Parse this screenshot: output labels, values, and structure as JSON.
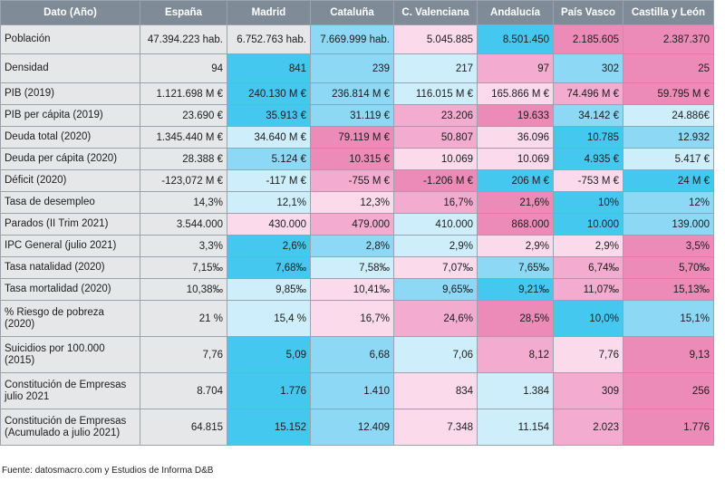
{
  "colors": {
    "header_bg": "#7f8c97",
    "label_bg": "#e6e7e8",
    "neutral": "#e6e7e8",
    "blue_strong": "#45c8f0",
    "blue_mid": "#8dd8f4",
    "blue_light": "#cdeefa",
    "pink_light": "#fadaeb",
    "pink_mid": "#f3acd0",
    "pink_strong": "#ec8ab8"
  },
  "table": {
    "headers": [
      "Dato (Año)",
      "España",
      "Madrid",
      "Cataluña",
      "C. Valenciana",
      "Andalucía",
      "País Vasco",
      "Castilla y León"
    ],
    "rows": [
      {
        "label": "Población",
        "values": [
          "47.394.223 hab.",
          "6.752.763 hab.",
          "7.669.999 hab.",
          "5.045.885",
          "8.501.450",
          "2.185.605",
          "2.387.370"
        ],
        "shades": [
          "neutral",
          "neutral",
          "blue_mid",
          "pink_light",
          "blue_strong",
          "pink_strong",
          "pink_strong"
        ]
      },
      {
        "label": "Densidad",
        "values": [
          "94",
          "841",
          "239",
          "217",
          "97",
          "302",
          "25"
        ],
        "shades": [
          "neutral",
          "blue_strong",
          "blue_mid",
          "blue_light",
          "pink_mid",
          "blue_mid",
          "pink_strong"
        ]
      },
      {
        "label": "PIB (2019)",
        "values": [
          "1.121.698 M €",
          "240.130 M €",
          "236.814 M €",
          "116.015 M €",
          "165.866 M €",
          "74.496 M €",
          "59.795 M €"
        ],
        "shades": [
          "neutral",
          "blue_strong",
          "blue_mid",
          "blue_light",
          "pink_light",
          "pink_mid",
          "pink_strong"
        ]
      },
      {
        "label": "PIB per cápita (2019)",
        "values": [
          "23.690 €",
          "35.913 €",
          "31.119 €",
          "23.206",
          "19.633",
          "34.142 €",
          "24.886€"
        ],
        "shades": [
          "neutral",
          "blue_strong",
          "blue_mid",
          "pink_mid",
          "pink_strong",
          "blue_mid",
          "blue_light"
        ]
      },
      {
        "label": "Deuda total (2020)",
        "values": [
          "1.345.440 M €",
          "34.640 M €",
          "79.119 M €",
          "50.807",
          "36.096",
          "10.785",
          "12.932"
        ],
        "shades": [
          "neutral",
          "blue_light",
          "pink_strong",
          "pink_mid",
          "pink_light",
          "blue_strong",
          "blue_mid"
        ]
      },
      {
        "label": "Deuda per cápita (2020)",
        "values": [
          "28.388 €",
          "5.124 €",
          "10.315 €",
          "10.069",
          "10.069",
          "4.935 €",
          "5.417 €"
        ],
        "shades": [
          "neutral",
          "blue_mid",
          "pink_strong",
          "pink_light",
          "pink_light",
          "blue_strong",
          "blue_light"
        ]
      },
      {
        "label": "Déficit (2020)",
        "values": [
          "-123,072 M €",
          "-117 M €",
          "-755 M €",
          "-1.206 M €",
          "206 M €",
          "-753 M €",
          "24 M €"
        ],
        "shades": [
          "neutral",
          "blue_light",
          "pink_mid",
          "pink_strong",
          "blue_strong",
          "pink_light",
          "blue_strong"
        ]
      },
      {
        "label": "Tasa de desempleo",
        "values": [
          "14,3%",
          "12,1%",
          "12,3%",
          "16,7%",
          "21,6%",
          "10%",
          "12%"
        ],
        "shades": [
          "neutral",
          "blue_light",
          "pink_light",
          "pink_mid",
          "pink_strong",
          "blue_strong",
          "blue_mid"
        ]
      },
      {
        "label": "Parados (II Trim 2021)",
        "values": [
          "3.544.000",
          "430.000",
          "479.000",
          "410.000",
          "868.000",
          "10.000",
          "139.000"
        ],
        "shades": [
          "neutral",
          "pink_light",
          "pink_mid",
          "blue_light",
          "pink_strong",
          "blue_strong",
          "blue_mid"
        ]
      },
      {
        "label": "IPC General (julio 2021)",
        "values": [
          "3,3%",
          "2,6%",
          "2,8%",
          "2,9%",
          "2,9%",
          "2,9%",
          "3,5%"
        ],
        "shades": [
          "neutral",
          "blue_strong",
          "blue_mid",
          "blue_light",
          "pink_light",
          "pink_light",
          "pink_strong"
        ]
      },
      {
        "label": "Tasa natalidad (2020)",
        "values": [
          "7,15‰",
          "7,68‰",
          "7,58‰",
          "7,07‰",
          "7,65‰",
          "6,74‰",
          "5,70‰"
        ],
        "shades": [
          "neutral",
          "blue_strong",
          "blue_light",
          "pink_light",
          "blue_mid",
          "pink_mid",
          "pink_strong"
        ]
      },
      {
        "label": "Tasa mortalidad (2020)",
        "values": [
          "10,38‰",
          "9,85‰",
          "10,41‰",
          "9,65‰",
          "9,21‰",
          "11,07‰",
          "15,13‰"
        ],
        "shades": [
          "neutral",
          "blue_light",
          "pink_light",
          "blue_mid",
          "blue_strong",
          "pink_mid",
          "pink_strong"
        ]
      },
      {
        "label": "% Riesgo de pobreza (2020)",
        "values": [
          "21 %",
          "15,4 %",
          "16,7%",
          "24,6%",
          "28,5%",
          "10,0%",
          "15,1%"
        ],
        "shades": [
          "neutral",
          "blue_light",
          "pink_light",
          "pink_mid",
          "pink_strong",
          "blue_strong",
          "blue_mid"
        ]
      },
      {
        "label": "Suicidios por 100.000 (2015)",
        "values": [
          "7,76",
          "5,09",
          "6,68",
          "7,06",
          "8,12",
          "7,76",
          "9,13"
        ],
        "shades": [
          "neutral",
          "blue_strong",
          "blue_mid",
          "blue_light",
          "pink_mid",
          "pink_light",
          "pink_strong"
        ]
      },
      {
        "label": "Constitución de Empresas julio 2021",
        "values": [
          "8.704",
          "1.776",
          "1.410",
          "834",
          "1.384",
          "309",
          "256"
        ],
        "shades": [
          "neutral",
          "blue_strong",
          "blue_mid",
          "pink_light",
          "blue_light",
          "pink_mid",
          "pink_strong"
        ]
      },
      {
        "label": "Constitución de Empresas (Acumulado a julio 2021)",
        "values": [
          "64.815",
          "15.152",
          "12.409",
          "7.348",
          "11.154",
          "2.023",
          "1.776"
        ],
        "shades": [
          "neutral",
          "blue_strong",
          "blue_mid",
          "pink_light",
          "blue_light",
          "pink_mid",
          "pink_strong"
        ]
      }
    ]
  },
  "source": "Fuente: datosmacro.com y Estudios de Informa D&B"
}
